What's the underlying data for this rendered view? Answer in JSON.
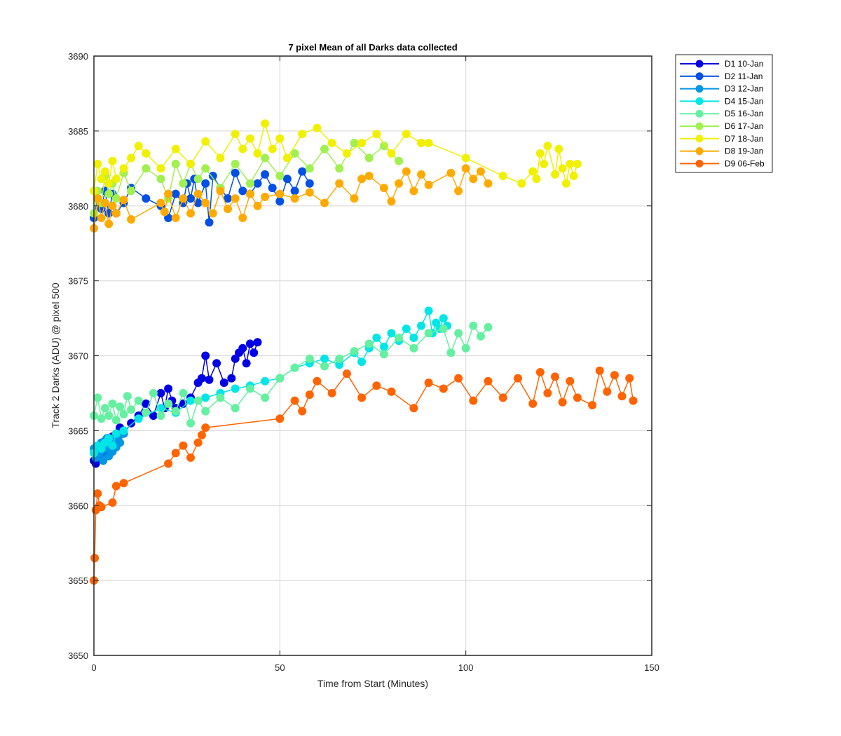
{
  "chart_data": {
    "type": "line",
    "title": "7 pixel Mean of all Darks data collected",
    "xlabel": "Time from Start (Minutes)",
    "ylabel": "Track 2 Darks (ADU) @ pixel 500",
    "xlim": [
      0,
      150
    ],
    "ylim": [
      3650,
      3690
    ],
    "xticks": [
      0,
      50,
      100,
      150
    ],
    "yticks": [
      3650,
      3655,
      3660,
      3665,
      3670,
      3675,
      3680,
      3685,
      3690
    ],
    "grid": true,
    "legend_position": "top-right outside",
    "marker": "circle",
    "series": [
      {
        "name": "D1 10-Jan",
        "color": "#0000E6",
        "x": [
          0,
          0.5,
          1,
          1.5,
          2,
          2.5,
          3,
          3.5,
          4,
          4.5,
          5,
          5.5,
          6,
          7,
          8,
          10,
          12,
          14,
          16,
          18,
          19,
          20,
          21,
          22,
          24,
          26,
          28,
          29,
          30,
          31,
          33,
          35,
          37,
          38,
          39,
          40,
          41,
          42,
          43,
          44
        ],
        "y": [
          3663,
          3662.8,
          3663.5,
          3663.2,
          3664,
          3663.5,
          3664.3,
          3663.8,
          3664.5,
          3664,
          3664.6,
          3664.2,
          3664.8,
          3665.2,
          3664.8,
          3665.5,
          3666,
          3666.8,
          3666,
          3667.5,
          3666.5,
          3667.8,
          3667,
          3666.5,
          3666.8,
          3667.2,
          3668.2,
          3668.5,
          3670,
          3668.4,
          3669.5,
          3668.2,
          3668.5,
          3669.8,
          3670.2,
          3670.5,
          3669.5,
          3670.8,
          3670.2,
          3670.9
        ]
      },
      {
        "name": "D2 11-Jan",
        "color": "#0050E6",
        "x": [
          0,
          1,
          2,
          3,
          4,
          5,
          6,
          8,
          10,
          14,
          18,
          20,
          22,
          24,
          25,
          26,
          27,
          28,
          30,
          31,
          32,
          34,
          36,
          38,
          40,
          42,
          44,
          46,
          48,
          50,
          52,
          54,
          56,
          58
        ],
        "y": [
          3679.2,
          3680.5,
          3679.8,
          3681,
          3679.5,
          3680.8,
          3679.5,
          3680.2,
          3681.2,
          3680.5,
          3680,
          3679.2,
          3680.8,
          3680.2,
          3681.5,
          3680.5,
          3681.8,
          3680.2,
          3681.5,
          3678.9,
          3682,
          3681.2,
          3680.5,
          3682.2,
          3681,
          3680.8,
          3681.5,
          3682.1,
          3681.2,
          3680.3,
          3681.8,
          3681,
          3682.3,
          3681.5
        ]
      },
      {
        "name": "D3 12-Jan",
        "color": "#0096E6",
        "x": [
          0,
          0.5,
          1,
          1.5,
          2,
          2.5,
          3,
          3.5,
          4,
          4.5,
          5,
          5.5,
          6,
          6.5,
          7,
          8
        ],
        "y": [
          3663.8,
          3663.2,
          3664,
          3663.5,
          3664.2,
          3663,
          3663.8,
          3664.5,
          3663.3,
          3664.1,
          3663.6,
          3664.4,
          3663.9,
          3664.6,
          3664.2,
          3664.8
        ]
      },
      {
        "name": "D4 15-Jan",
        "color": "#00E6E6",
        "x": [
          0,
          1,
          2,
          3,
          4,
          5,
          6,
          8,
          12,
          18,
          22,
          26,
          30,
          34,
          38,
          42,
          46,
          50,
          54,
          58,
          62,
          66,
          70,
          72,
          74,
          76,
          78,
          80,
          82,
          84,
          86,
          88,
          90,
          91,
          92,
          93,
          94,
          95
        ],
        "y": [
          3663.5,
          3664,
          3663.8,
          3664.2,
          3664.5,
          3664,
          3664.8,
          3665,
          3665.8,
          3666.5,
          3666.2,
          3667,
          3667.2,
          3667.5,
          3667.8,
          3668,
          3668.3,
          3668.5,
          3669.2,
          3669.5,
          3669.8,
          3669.4,
          3670.2,
          3669.6,
          3670.5,
          3671.2,
          3670.6,
          3671.5,
          3671,
          3671.8,
          3671.2,
          3672,
          3673,
          3671.5,
          3672.2,
          3671.8,
          3672.5,
          3672
        ]
      },
      {
        "name": "D5 16-Jan",
        "color": "#64F0A0",
        "x": [
          0,
          1,
          2,
          3,
          4,
          5,
          6,
          7,
          8,
          9,
          10,
          12,
          14,
          16,
          18,
          20,
          22,
          24,
          26,
          28,
          30,
          34,
          38,
          42,
          46,
          50,
          54,
          58,
          62,
          66,
          70,
          74,
          78,
          82,
          86,
          90,
          94,
          96,
          98,
          100,
          102,
          104,
          106
        ],
        "y": [
          3666,
          3667.2,
          3665.8,
          3666.5,
          3666,
          3666.8,
          3665.7,
          3666.6,
          3666.1,
          3667.3,
          3666.4,
          3667,
          3666.2,
          3667.5,
          3666,
          3666.8,
          3666.3,
          3667.5,
          3665.5,
          3667,
          3666.3,
          3667.2,
          3666.5,
          3667.8,
          3667.2,
          3668.5,
          3669.2,
          3669.8,
          3669.3,
          3669.8,
          3670.3,
          3670.8,
          3670.1,
          3671.2,
          3670.5,
          3671.5,
          3671.8,
          3670.2,
          3671.5,
          3670.5,
          3672,
          3671.3,
          3671.9
        ]
      },
      {
        "name": "D6 17-Jan",
        "color": "#A0F050",
        "x": [
          0,
          1,
          2,
          3,
          4,
          5,
          6,
          8,
          10,
          14,
          18,
          20,
          22,
          24,
          26,
          28,
          30,
          34,
          38,
          42,
          46,
          50,
          54,
          58,
          62,
          66,
          70,
          74,
          78,
          82
        ],
        "y": [
          3679.5,
          3681,
          3680.2,
          3682,
          3680.8,
          3681.5,
          3680.5,
          3682.2,
          3681,
          3682.5,
          3681.8,
          3680.5,
          3682.8,
          3681.5,
          3682.8,
          3681.8,
          3682.5,
          3681.2,
          3682.8,
          3681.5,
          3683.2,
          3682,
          3683.5,
          3682.5,
          3683.8,
          3682.5,
          3684.2,
          3683.2,
          3684,
          3683
        ]
      },
      {
        "name": "D7 18-Jan",
        "color": "#F0F000",
        "x": [
          0,
          1,
          2,
          3,
          4,
          5,
          6,
          8,
          10,
          12,
          14,
          18,
          22,
          26,
          30,
          34,
          38,
          40,
          42,
          44,
          46,
          48,
          50,
          52,
          56,
          60,
          64,
          68,
          72,
          76,
          80,
          84,
          88,
          90,
          100,
          110,
          115,
          118,
          119,
          120,
          121,
          122,
          124,
          125,
          126,
          127,
          128,
          129,
          130
        ],
        "y": [
          3681,
          3682.8,
          3681.8,
          3682.3,
          3681.5,
          3683,
          3681.8,
          3682.5,
          3683.2,
          3684,
          3683.5,
          3682.5,
          3683.8,
          3682.8,
          3684.3,
          3683.2,
          3684.8,
          3683.8,
          3684.5,
          3683.5,
          3685.5,
          3683.8,
          3684.5,
          3683.2,
          3684.8,
          3685.2,
          3684.2,
          3683.5,
          3684.2,
          3684.8,
          3683.5,
          3684.8,
          3684.2,
          3684.2,
          3683.2,
          3682,
          3681.5,
          3682.3,
          3681.8,
          3683.5,
          3682.8,
          3684,
          3682.1,
          3683.8,
          3682.5,
          3681.5,
          3682.8,
          3682,
          3682.8
        ]
      },
      {
        "name": "D8 19-Jan",
        "color": "#FFAA00",
        "x": [
          0,
          1,
          2,
          3,
          4,
          5,
          6,
          8,
          10,
          18,
          19,
          20,
          22,
          24,
          26,
          28,
          30,
          32,
          34,
          36,
          38,
          40,
          42,
          44,
          46,
          50,
          54,
          58,
          62,
          66,
          70,
          72,
          74,
          78,
          80,
          82,
          84,
          86,
          88,
          90,
          96,
          98,
          100,
          102,
          104,
          106
        ],
        "y": [
          3678.5,
          3680.5,
          3679.2,
          3680.2,
          3678.8,
          3680,
          3679.5,
          3680.4,
          3679.1,
          3680.2,
          3679.6,
          3680.8,
          3679.2,
          3680.5,
          3679.5,
          3680.8,
          3680.2,
          3679.5,
          3681,
          3679.8,
          3680.5,
          3679.2,
          3680.8,
          3680,
          3680.6,
          3680.8,
          3680.5,
          3680.9,
          3680.2,
          3681.5,
          3680.5,
          3681.8,
          3682,
          3681.2,
          3680.3,
          3681.5,
          3682.3,
          3681,
          3682.1,
          3681.4,
          3682.2,
          3681,
          3682.5,
          3681.8,
          3682.3,
          3681.5
        ]
      },
      {
        "name": "D9 06-Feb",
        "color": "#FF6400",
        "x": [
          0,
          0.2,
          0.5,
          1,
          1.5,
          2,
          5,
          6,
          8,
          20,
          22,
          24,
          26,
          28,
          29,
          30,
          50,
          54,
          56,
          58,
          60,
          64,
          68,
          72,
          76,
          80,
          86,
          90,
          94,
          98,
          102,
          106,
          110,
          114,
          118,
          120,
          122,
          124,
          126,
          128,
          130,
          134,
          136,
          138,
          140,
          142,
          144,
          145
        ],
        "y": [
          3655,
          3656.5,
          3659.7,
          3660.8,
          3660,
          3659.9,
          3660.2,
          3661.3,
          3661.5,
          3662.8,
          3663.5,
          3664,
          3663.2,
          3664.2,
          3664.7,
          3665.2,
          3665.8,
          3667,
          3666.3,
          3667.4,
          3668.3,
          3667.5,
          3668.8,
          3667.2,
          3668,
          3667.6,
          3666.5,
          3668.2,
          3667.8,
          3668.5,
          3667,
          3668.3,
          3667.2,
          3668.5,
          3666.8,
          3668.9,
          3667.5,
          3668.6,
          3666.9,
          3668.3,
          3667.2,
          3666.7,
          3669,
          3667.6,
          3668.7,
          3667.3,
          3668.5,
          3667
        ]
      }
    ]
  }
}
